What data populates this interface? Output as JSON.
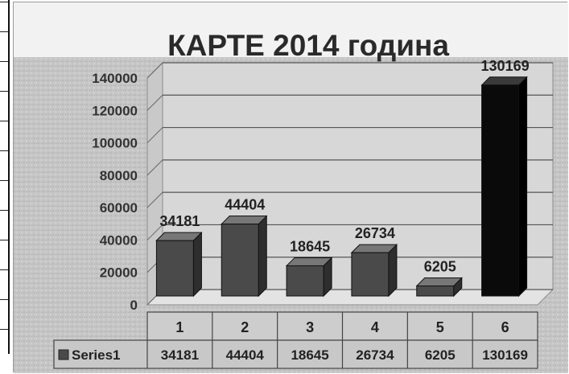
{
  "chart_data": {
    "type": "bar",
    "title": "КАРТЕ 2014 година",
    "categories": [
      "1",
      "2",
      "3",
      "4",
      "5",
      "6"
    ],
    "series": [
      {
        "name": "Series1",
        "values": [
          34181,
          44404,
          18645,
          26734,
          6205,
          130169
        ]
      }
    ],
    "y_ticks": [
      "140000",
      "120000",
      "100000",
      "80000",
      "60000",
      "40000",
      "20000",
      "0"
    ],
    "ylim": [
      0,
      140000
    ],
    "grid": true,
    "data_table": true,
    "colors": {
      "bar_default": "#4a4a4a",
      "bar_highlight": "#0a0a0a",
      "frame_background": "#c4c4c4",
      "title_band": "#f2f2f2"
    }
  }
}
